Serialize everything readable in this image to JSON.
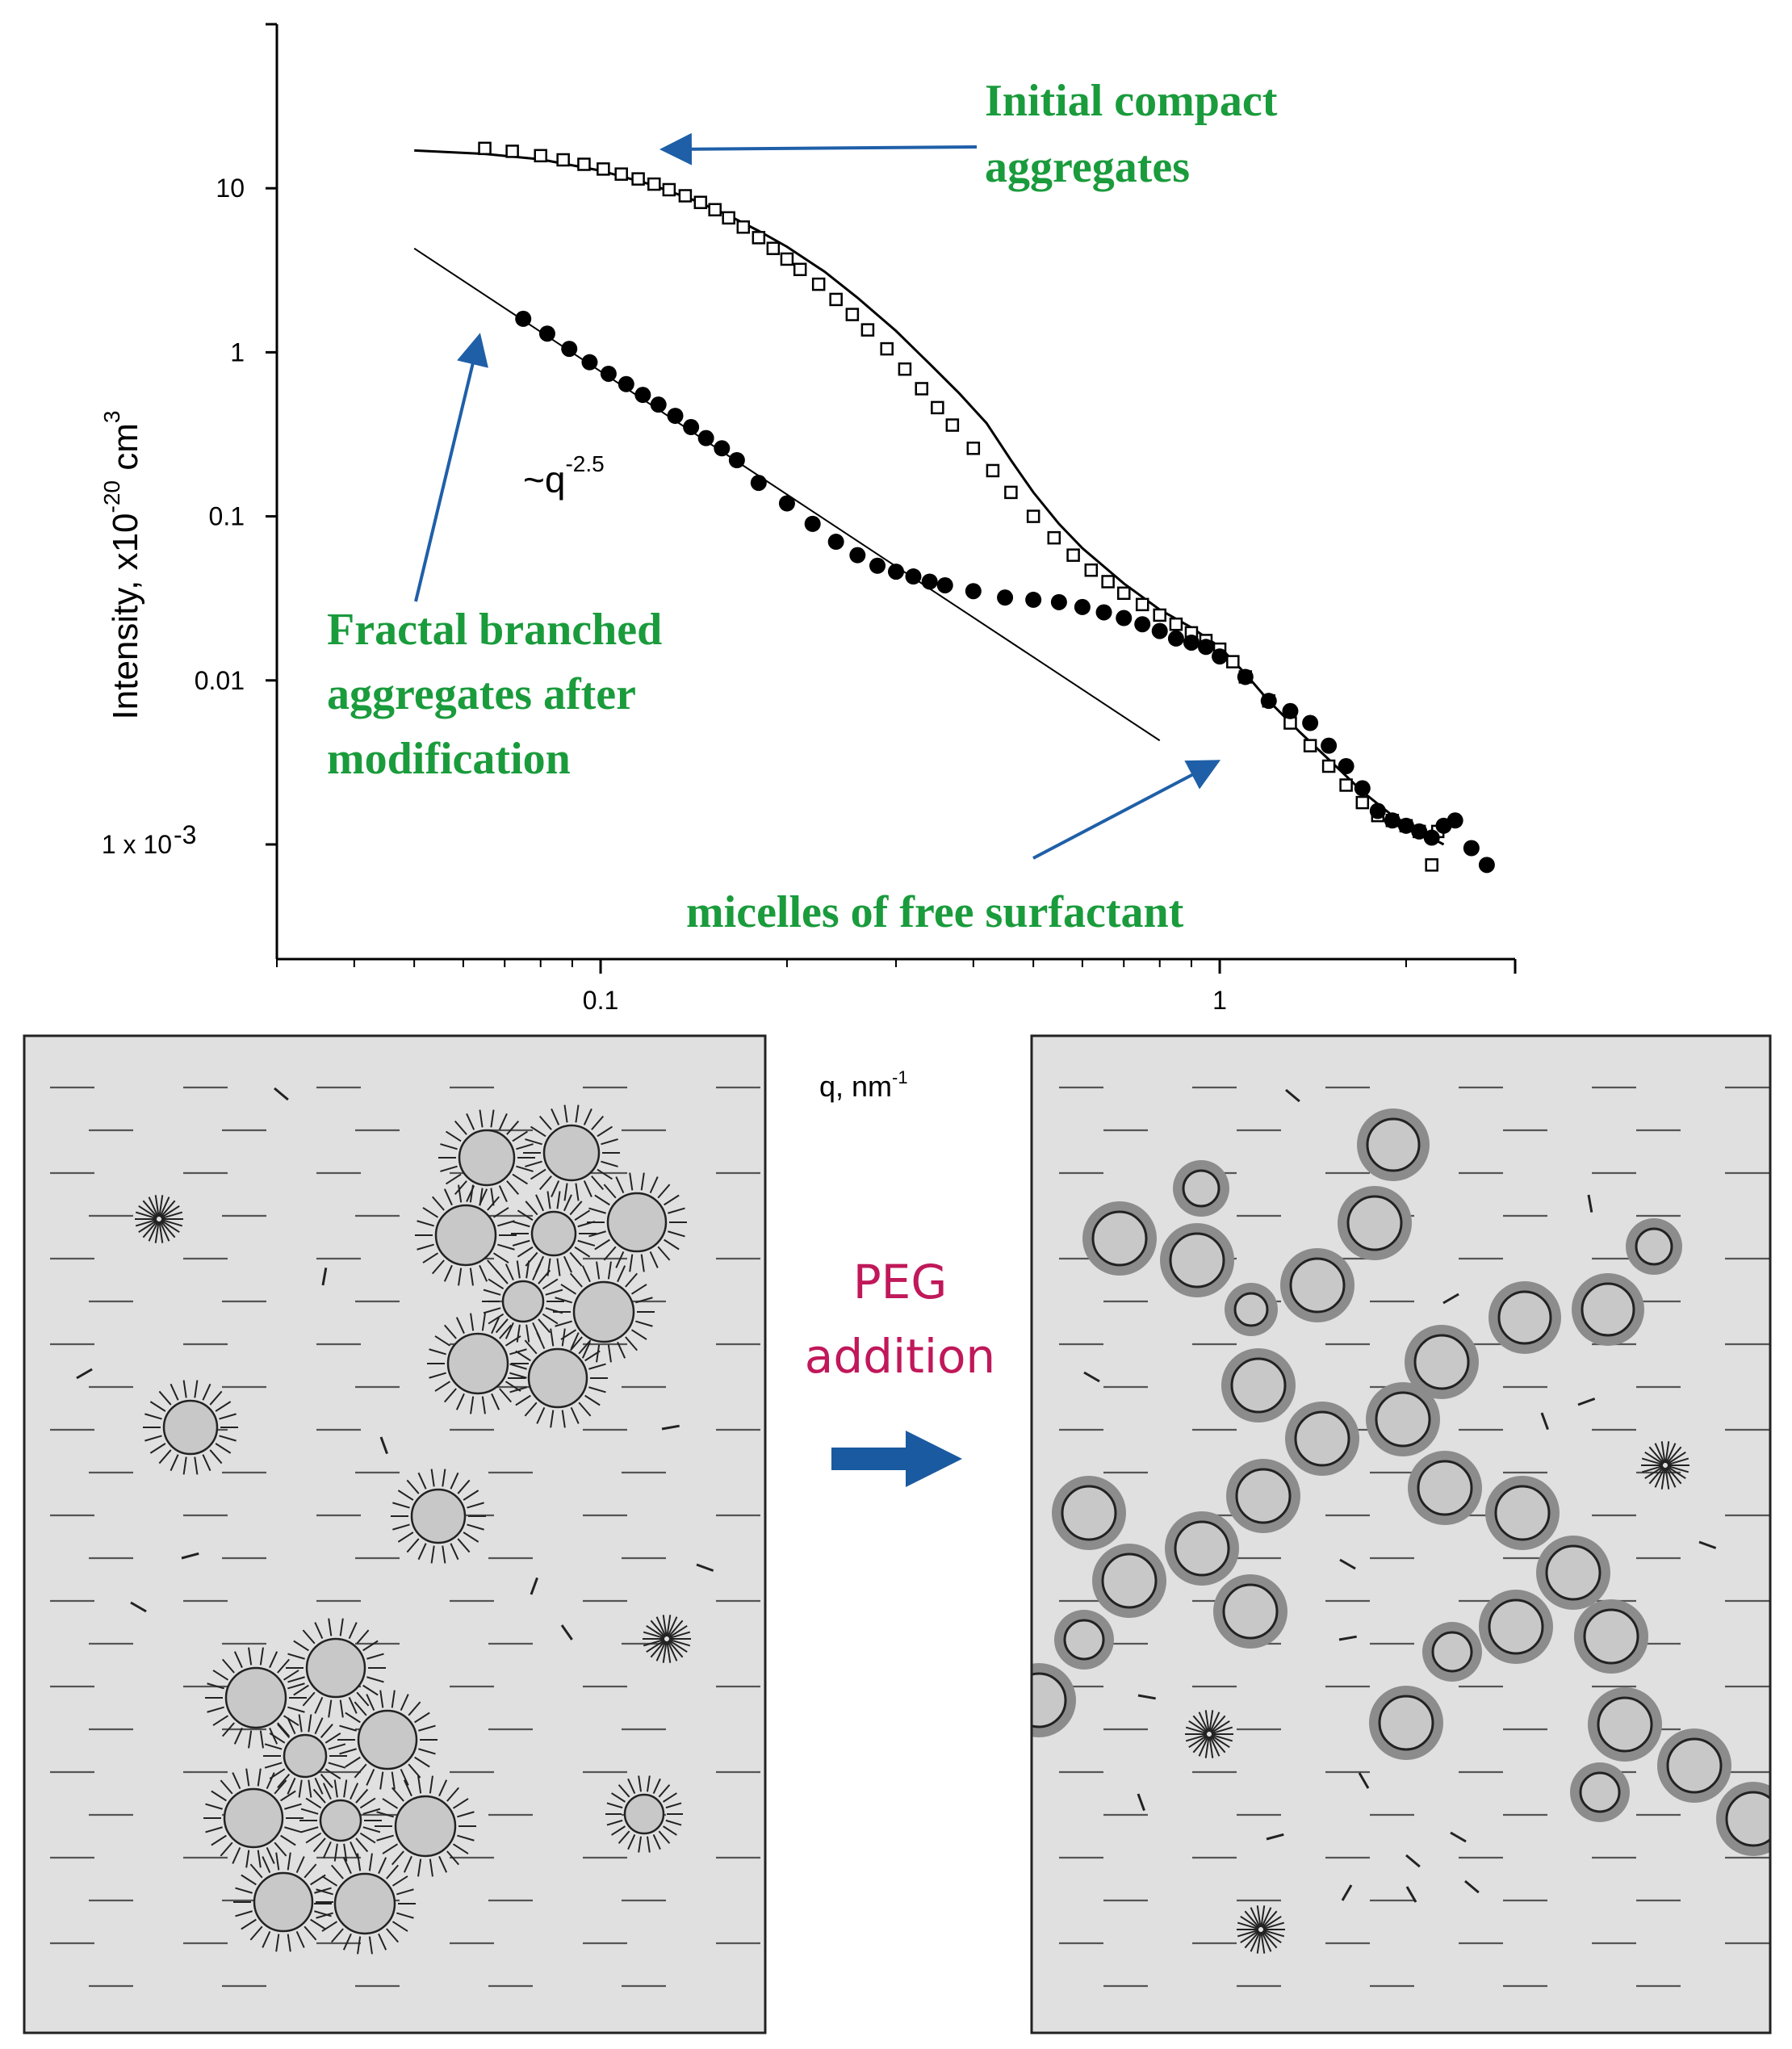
{
  "chart_data": {
    "type": "scatter",
    "log_x": true,
    "log_y": true,
    "xlim": [
      0.03,
      3
    ],
    "ylim": [
      0.0002,
      100
    ],
    "x_ticks": [
      {
        "value": 0.1,
        "label": "0.1"
      },
      {
        "value": 1,
        "label": "1"
      }
    ],
    "y_ticks": [
      {
        "value": 10,
        "label": "10"
      },
      {
        "value": 1,
        "label": "1"
      },
      {
        "value": 0.1,
        "label": "0.1"
      },
      {
        "value": 0.01,
        "label": "0.01"
      },
      {
        "value": 0.001,
        "label_main": "1 x 10",
        "label_sup": "-3"
      }
    ],
    "xlabel_main": "q, nm",
    "xlabel_sup": "-1",
    "ylabel_parts": {
      "a": "Intensity, x10",
      "b": "-20",
      "c": " cm",
      "d": "3"
    },
    "series": [
      {
        "marker": "open-square",
        "x": [
          0.065,
          0.072,
          0.08,
          0.087,
          0.094,
          0.101,
          0.108,
          0.115,
          0.122,
          0.129,
          0.137,
          0.145,
          0.153,
          0.161,
          0.17,
          0.18,
          0.19,
          0.2,
          0.21,
          0.225,
          0.24,
          0.255,
          0.27,
          0.29,
          0.31,
          0.33,
          0.35,
          0.37,
          0.4,
          0.43,
          0.46,
          0.5,
          0.54,
          0.58,
          0.62,
          0.66,
          0.7,
          0.75,
          0.8,
          0.85,
          0.9,
          0.95,
          1.0,
          1.05,
          1.1,
          1.2,
          1.3,
          1.4,
          1.5,
          1.6,
          1.7,
          1.8,
          1.9,
          2.0,
          2.1,
          2.2,
          2.25
        ],
        "y": [
          17.5,
          16.8,
          15.8,
          14.9,
          14.0,
          13.1,
          12.2,
          11.4,
          10.6,
          9.8,
          9.0,
          8.2,
          7.4,
          6.6,
          5.8,
          5.0,
          4.3,
          3.7,
          3.2,
          2.6,
          2.1,
          1.7,
          1.37,
          1.05,
          0.79,
          0.6,
          0.46,
          0.36,
          0.26,
          0.19,
          0.14,
          0.1,
          0.074,
          0.058,
          0.047,
          0.04,
          0.034,
          0.029,
          0.025,
          0.022,
          0.0195,
          0.0175,
          0.0155,
          0.013,
          0.0105,
          0.0075,
          0.0055,
          0.004,
          0.003,
          0.0023,
          0.0018,
          0.0015,
          0.0014,
          0.0013,
          0.0012,
          0.00075,
          0.0012
        ]
      },
      {
        "marker": "filled-circle",
        "x": [
          0.075,
          0.082,
          0.089,
          0.096,
          0.103,
          0.11,
          0.117,
          0.124,
          0.132,
          0.14,
          0.148,
          0.157,
          0.166,
          0.18,
          0.2,
          0.22,
          0.24,
          0.26,
          0.28,
          0.3,
          0.32,
          0.34,
          0.36,
          0.4,
          0.45,
          0.5,
          0.55,
          0.6,
          0.65,
          0.7,
          0.75,
          0.8,
          0.85,
          0.9,
          0.95,
          1.0,
          1.1,
          1.2,
          1.3,
          1.4,
          1.5,
          1.6,
          1.7,
          1.8,
          1.9,
          2.0,
          2.1,
          2.2,
          2.3,
          2.4,
          2.55,
          2.7
        ],
        "y": [
          1.6,
          1.3,
          1.05,
          0.87,
          0.74,
          0.64,
          0.55,
          0.48,
          0.41,
          0.35,
          0.3,
          0.26,
          0.22,
          0.16,
          0.12,
          0.09,
          0.07,
          0.058,
          0.05,
          0.046,
          0.043,
          0.04,
          0.038,
          0.035,
          0.032,
          0.031,
          0.03,
          0.028,
          0.026,
          0.024,
          0.022,
          0.02,
          0.018,
          0.017,
          0.016,
          0.014,
          0.0105,
          0.0075,
          0.0065,
          0.0055,
          0.004,
          0.003,
          0.0022,
          0.0016,
          0.0014,
          0.0013,
          0.0012,
          0.0011,
          0.0013,
          0.0014,
          0.00095,
          0.00075
        ]
      }
    ],
    "fit_curve": {
      "x": [
        0.05,
        0.065,
        0.08,
        0.1,
        0.12,
        0.14,
        0.16,
        0.18,
        0.2,
        0.23,
        0.26,
        0.3,
        0.34,
        0.38,
        0.42,
        0.46,
        0.5,
        0.55,
        0.6,
        0.7,
        0.8,
        0.9,
        1.0,
        1.1,
        1.2,
        1.35,
        1.5,
        1.7,
        1.9,
        2.1,
        2.3
      ],
      "y": [
        17.0,
        16.2,
        15.0,
        12.8,
        10.6,
        8.6,
        6.9,
        5.5,
        4.4,
        3.1,
        2.15,
        1.35,
        0.85,
        0.56,
        0.37,
        0.22,
        0.14,
        0.09,
        0.064,
        0.039,
        0.027,
        0.021,
        0.016,
        0.011,
        0.0075,
        0.0048,
        0.0033,
        0.0021,
        0.0015,
        0.0012,
        0.001
      ]
    },
    "powerlaw_line": {
      "x": [
        0.05,
        0.8
      ],
      "y": [
        4.3,
        0.0043
      ]
    },
    "annotations": {
      "powerlaw_main": "~q",
      "powerlaw_sup": "-2.5",
      "initial_line1": "Initial compact",
      "initial_line2": "aggregates",
      "fractal_line1": "Fractal branched",
      "fractal_line2": "aggregates after",
      "fractal_line3": "modification",
      "micelles": "micelles of  free surfactant"
    },
    "colors": {
      "annotation_green": "#1a9b3c",
      "arrow_blue": "#1f5fa8",
      "peg_text": "#c0185a",
      "panel_fill": "#e0e0e0",
      "particle_fill": "#c8c8c8",
      "shell_fill": "#8c8c8c"
    }
  },
  "diagram": {
    "peg_line1": "PEG",
    "peg_line2": "addition"
  }
}
